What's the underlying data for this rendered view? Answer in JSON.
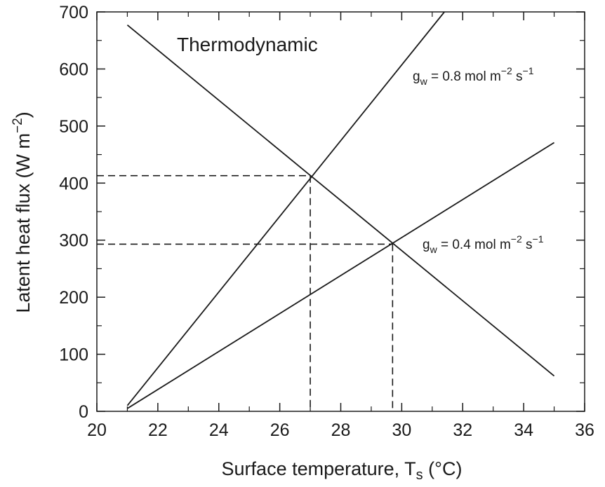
{
  "chart_data": {
    "type": "line",
    "xlabel": "Surface temperature, T",
    "xlabel_sub": "s",
    "xlabel_unit": " (°C)",
    "ylabel": "Latent heat flux (W m",
    "ylabel_sup": "−2",
    "ylabel_end": ")",
    "xlim": [
      20,
      36
    ],
    "ylim": [
      0,
      700
    ],
    "xticks": [
      20,
      22,
      24,
      26,
      28,
      30,
      32,
      34,
      36
    ],
    "yticks": [
      0,
      100,
      200,
      300,
      400,
      500,
      600,
      700
    ],
    "grid": false,
    "series": [
      {
        "name": "Thermodynamic",
        "x": [
          21,
          35
        ],
        "y": [
          677,
          62
        ]
      },
      {
        "name": "gw = 0.8 mol m−2 s−1",
        "x": [
          21,
          31.4
        ],
        "y": [
          10,
          700
        ]
      },
      {
        "name": "gw = 0.4 mol m−2 s−1",
        "x": [
          21,
          35
        ],
        "y": [
          5,
          471
        ]
      }
    ],
    "reference_lines": [
      {
        "x": 27.0,
        "y": 413
      },
      {
        "x": 29.7,
        "y": 293
      }
    ],
    "annotations": {
      "thermo": "Thermodynamic",
      "g08": {
        "g": "g",
        "sub": "w",
        "text": " = 0.8 mol m",
        "sup": "−2",
        "tail": " s",
        "sup2": "−1"
      },
      "g04": {
        "g": "g",
        "sub": "w",
        "text": " = 0.4 mol m",
        "sup": "−2",
        "tail": " s",
        "sup2": "−1"
      }
    }
  }
}
